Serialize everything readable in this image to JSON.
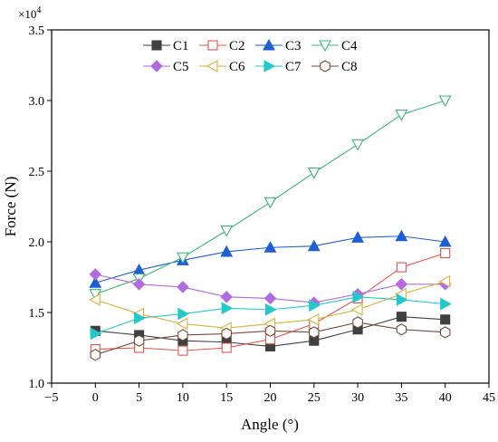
{
  "chart_data": {
    "type": "line",
    "xlabel": "Angle (°)",
    "ylabel": "Force (N)",
    "y_multiplier": "×10",
    "y_multiplier_exp": "4",
    "xlim": [
      -5,
      45
    ],
    "ylim": [
      1.0,
      3.5
    ],
    "x_ticks": [
      "−5",
      "0",
      "5",
      "10",
      "15",
      "20",
      "25",
      "30",
      "35",
      "40",
      "45"
    ],
    "y_ticks": [
      "1.0",
      "1.5",
      "2.0",
      "2.5",
      "3.0",
      "3.5"
    ],
    "x": [
      0,
      5,
      10,
      15,
      20,
      25,
      30,
      35,
      40
    ],
    "legend_position": "top-center",
    "grid": false,
    "series": [
      {
        "name": "C1",
        "color": "#404040",
        "marker": "square-filled",
        "values": [
          1.37,
          1.34,
          1.3,
          1.29,
          1.26,
          1.3,
          1.38,
          1.47,
          1.45
        ]
      },
      {
        "name": "C2",
        "color": "#e8534a",
        "marker": "square-open",
        "values": [
          1.24,
          1.25,
          1.23,
          1.25,
          1.31,
          1.42,
          1.6,
          1.82,
          1.92
        ]
      },
      {
        "name": "C3",
        "color": "#1f5fd6",
        "marker": "triangle-up-filled",
        "values": [
          1.71,
          1.8,
          1.87,
          1.93,
          1.96,
          1.97,
          2.03,
          2.04,
          2.0
        ]
      },
      {
        "name": "C4",
        "color": "#3cb878",
        "marker": "triangle-down-open",
        "values": [
          1.63,
          1.74,
          1.89,
          2.08,
          2.28,
          2.49,
          2.69,
          2.9,
          3.0
        ]
      },
      {
        "name": "C5",
        "color": "#b36be0",
        "marker": "diamond-filled",
        "values": [
          1.77,
          1.7,
          1.68,
          1.61,
          1.6,
          1.57,
          1.63,
          1.7,
          1.7
        ]
      },
      {
        "name": "C6",
        "color": "#d9b23a",
        "marker": "triangle-left-open",
        "values": [
          1.59,
          1.49,
          1.42,
          1.39,
          1.42,
          1.45,
          1.52,
          1.63,
          1.72
        ]
      },
      {
        "name": "C7",
        "color": "#22c9c9",
        "marker": "triangle-right-filled",
        "values": [
          1.35,
          1.46,
          1.49,
          1.53,
          1.52,
          1.55,
          1.61,
          1.59,
          1.56
        ]
      },
      {
        "name": "C8",
        "color": "#7a4a3a",
        "marker": "hexagon-open",
        "values": [
          1.2,
          1.3,
          1.34,
          1.35,
          1.37,
          1.36,
          1.43,
          1.38,
          1.36
        ]
      }
    ]
  }
}
